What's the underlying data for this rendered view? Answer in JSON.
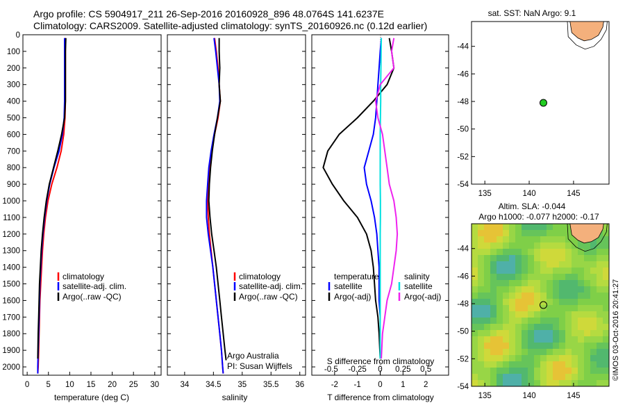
{
  "header": {
    "line1": "Argo profile: CS 5904917_211 26-Sep-2016 20160928_896 48.0764S 141.6237E",
    "line2": "Climatology: CARS2009. Satellite-adjusted climatology: synTS_20160926.nc (0.12d earlier)"
  },
  "colors": {
    "climatology": "#ff0000",
    "satellite": "#0000ff",
    "argo": "#000000",
    "salinity_satellite": "#00e0e0",
    "salinity_argo": "#ee22ee",
    "land": "#f4b07c"
  },
  "chart_data": [
    {
      "type": "line",
      "name": "temperature-profile",
      "xlabel": "temperature (deg C)",
      "ylabel": "",
      "xlim": [
        -1,
        31.5
      ],
      "ylim": [
        2050,
        0
      ],
      "xticks": [
        0,
        5,
        10,
        15,
        20,
        25,
        30
      ],
      "yticks": [
        0,
        100,
        200,
        300,
        400,
        500,
        600,
        700,
        800,
        900,
        1000,
        1100,
        1200,
        1300,
        1400,
        1500,
        1600,
        1700,
        1800,
        1900,
        2000
      ],
      "legend_position": "lower-center",
      "legend": [
        "climatology",
        "satellite-adj. clim.",
        "Argo(..raw -QC)"
      ],
      "series": [
        {
          "name": "climatology",
          "color": "#ff0000",
          "x": [
            9.0,
            9.0,
            9.0,
            9.0,
            9.0,
            8.9,
            8.6,
            8.0,
            7.0,
            5.8,
            4.9,
            4.3,
            3.9,
            3.6,
            3.4,
            3.2,
            3.0,
            2.9,
            2.8,
            2.7,
            2.6,
            2.5
          ],
          "y": [
            20,
            100,
            200,
            300,
            400,
            500,
            600,
            700,
            800,
            900,
            1000,
            1100,
            1200,
            1300,
            1400,
            1500,
            1600,
            1700,
            1800,
            1900,
            2000,
            2040
          ]
        },
        {
          "name": "satellite-adj. clim.",
          "color": "#0000ff",
          "x": [
            8.8,
            8.8,
            8.8,
            8.8,
            8.8,
            8.7,
            8.3,
            7.5,
            6.3,
            5.3,
            4.6,
            4.1,
            3.7,
            3.4,
            3.2,
            3.0,
            2.9,
            2.8,
            2.7,
            2.6,
            2.5,
            2.5
          ],
          "y": [
            20,
            100,
            200,
            300,
            400,
            500,
            600,
            700,
            800,
            900,
            1000,
            1100,
            1200,
            1300,
            1400,
            1500,
            1600,
            1700,
            1800,
            1900,
            2000,
            2040
          ]
        },
        {
          "name": "Argo(..raw -QC)",
          "color": "#000000",
          "x": [
            9.1,
            9.0,
            9.0,
            9.0,
            9.0,
            8.8,
            8.1,
            7.2,
            6.2,
            5.2,
            4.5,
            4.0,
            3.6,
            3.3,
            3.1,
            2.9,
            2.8,
            2.7,
            2.6,
            2.5
          ],
          "y": [
            20,
            100,
            200,
            300,
            400,
            500,
            600,
            700,
            800,
            900,
            1000,
            1100,
            1200,
            1300,
            1400,
            1500,
            1600,
            1700,
            1800,
            1950
          ]
        }
      ]
    },
    {
      "type": "line",
      "name": "salinity-profile",
      "xlabel": "salinity",
      "ylabel": "",
      "xlim": [
        33.7,
        36.1
      ],
      "ylim": [
        2050,
        0
      ],
      "xticks": [
        34,
        34.5,
        35,
        35.5,
        36
      ],
      "legend_position": "lower-center",
      "legend": [
        "climatology",
        "satellite-adj. clim.",
        "Argo(..raw -QC)"
      ],
      "annotation": [
        "Argo Australia",
        "PI: Susan Wijffels"
      ],
      "series": [
        {
          "name": "climatology",
          "color": "#ff0000",
          "x": [
            34.52,
            34.55,
            34.58,
            34.6,
            34.62,
            34.58,
            34.52,
            34.47,
            34.43,
            34.41,
            34.4,
            34.41,
            34.43,
            34.46,
            34.49,
            34.52,
            34.55,
            34.58,
            34.61,
            34.64,
            34.66,
            34.67
          ],
          "y": [
            20,
            100,
            200,
            300,
            400,
            500,
            600,
            700,
            800,
            900,
            1000,
            1100,
            1200,
            1300,
            1400,
            1500,
            1600,
            1700,
            1800,
            1900,
            2000,
            2040
          ]
        },
        {
          "name": "satellite-adj. clim.",
          "color": "#0000ff",
          "x": [
            34.51,
            34.54,
            34.57,
            34.6,
            34.61,
            34.57,
            34.51,
            34.46,
            34.42,
            34.4,
            34.38,
            34.38,
            34.41,
            34.45,
            34.49,
            34.52,
            34.55,
            34.58,
            34.61,
            34.64,
            34.66,
            34.67
          ],
          "y": [
            20,
            100,
            200,
            300,
            400,
            500,
            600,
            700,
            800,
            900,
            1000,
            1100,
            1200,
            1300,
            1400,
            1500,
            1600,
            1700,
            1800,
            1900,
            2000,
            2040
          ]
        },
        {
          "name": "Argo(..raw -QC)",
          "color": "#000000",
          "x": [
            34.6,
            34.6,
            34.61,
            34.6,
            34.62,
            34.57,
            34.52,
            34.48,
            34.45,
            34.43,
            34.42,
            34.44,
            34.47,
            34.51,
            34.55,
            34.58,
            34.61,
            34.64,
            34.67,
            34.7,
            34.72
          ],
          "y": [
            20,
            100,
            200,
            300,
            400,
            500,
            600,
            700,
            800,
            900,
            1000,
            1100,
            1200,
            1300,
            1400,
            1500,
            1600,
            1700,
            1800,
            1900,
            1960
          ]
        }
      ]
    },
    {
      "type": "line",
      "name": "difference-profile",
      "xlabel": "T difference from climatology",
      "xlabel_top": "S difference from climatology",
      "xlim": [
        -3,
        3
      ],
      "ylim": [
        2050,
        0
      ],
      "xticks": [
        -2,
        -1,
        0,
        1,
        2
      ],
      "xticks_top": [
        "-0.5",
        "-0.25",
        "0",
        "0.25",
        "0.5"
      ],
      "legend_position": "lower-center",
      "legend_left": [
        "temperature",
        "satellite",
        "Argo(-adj)"
      ],
      "legend_right": [
        "salinity",
        "satellite",
        "Argo(-adj)"
      ],
      "series": [
        {
          "name": "temperature satellite",
          "color": "#0000ff",
          "x": [
            0.05,
            0.0,
            -0.05,
            -0.1,
            -0.15,
            -0.2,
            -0.3,
            -0.5,
            -0.7,
            -0.6,
            -0.4,
            -0.25,
            -0.15,
            -0.1,
            -0.05,
            -0.05,
            -0.05,
            0.0,
            0.0,
            0.0
          ],
          "y": [
            20,
            100,
            200,
            300,
            400,
            500,
            600,
            700,
            800,
            900,
            1000,
            1100,
            1200,
            1300,
            1400,
            1500,
            1600,
            1700,
            1800,
            1950
          ]
        },
        {
          "name": "temperature Argo(-adj)",
          "color": "#000000",
          "x": [
            0.4,
            0.5,
            0.6,
            0.3,
            -0.3,
            -1.0,
            -1.8,
            -2.3,
            -2.5,
            -2.1,
            -1.6,
            -1.0,
            -0.6,
            -0.4,
            -0.3,
            -0.25,
            -0.2,
            -0.1,
            -0.05,
            0.0
          ],
          "y": [
            20,
            100,
            200,
            300,
            400,
            500,
            600,
            700,
            800,
            900,
            1000,
            1100,
            1200,
            1300,
            1400,
            1500,
            1600,
            1700,
            1800,
            1950
          ]
        },
        {
          "name": "salinity satellite",
          "color": "#00e0e0",
          "x": [
            0.05,
            0.04,
            0.03,
            0.02,
            0.02,
            0.01,
            0.0,
            0.0,
            0.0,
            0.0,
            0.01,
            0.01,
            0.0,
            0.0,
            0.0,
            0.0,
            0.0,
            0.0,
            0.0,
            0.0
          ],
          "y": [
            20,
            100,
            200,
            300,
            400,
            500,
            600,
            700,
            800,
            900,
            1000,
            1100,
            1200,
            1300,
            1400,
            1500,
            1600,
            1700,
            1800,
            1950
          ]
        },
        {
          "name": "salinity Argo(-adj)",
          "color": "#ee22ee",
          "x": [
            0.6,
            0.5,
            0.6,
            0.0,
            -0.2,
            -0.1,
            0.1,
            0.2,
            0.3,
            0.4,
            0.6,
            0.7,
            0.75,
            0.7,
            0.6,
            0.5,
            0.3,
            0.2,
            0.1,
            0.05
          ],
          "y": [
            20,
            100,
            200,
            300,
            400,
            500,
            600,
            700,
            800,
            900,
            1000,
            1100,
            1200,
            1300,
            1400,
            1500,
            1600,
            1700,
            1800,
            1950
          ]
        }
      ]
    },
    {
      "type": "scatter",
      "name": "location-map",
      "title": "sat. SST: NaN Argo: 9.1",
      "xlim": [
        133.5,
        149
      ],
      "ylim": [
        -54,
        -42.2
      ],
      "xticks": [
        135,
        140,
        145
      ],
      "yticks": [
        -44,
        -46,
        -48,
        -50,
        -52,
        -54
      ],
      "points": [
        {
          "x": 141.6,
          "y": -48.1
        }
      ]
    },
    {
      "type": "heatmap",
      "name": "altimetry-map",
      "title": "Altim. SLA: -0.044",
      "subtitle": "Argo h1000: -0.077 h2000: -0.17",
      "xlim": [
        133.5,
        149
      ],
      "ylim": [
        -54,
        -42.2
      ],
      "xticks": [
        135,
        140,
        145
      ],
      "yticks": [
        -44,
        -46,
        -48,
        -50,
        -52,
        -54
      ],
      "points": [
        {
          "x": 141.6,
          "y": -48.1
        }
      ]
    }
  ],
  "footer": {
    "credit": "©IMOS 03-Oct-2016 20:41:27"
  }
}
